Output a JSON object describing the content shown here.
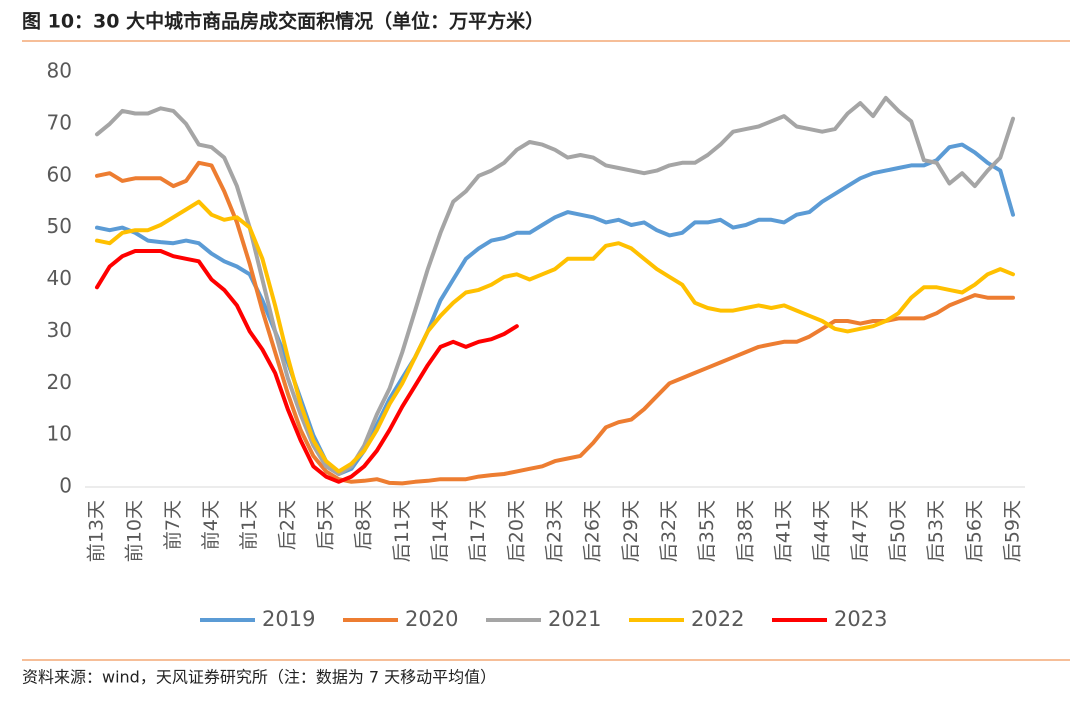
{
  "chart_data": {
    "type": "line",
    "title": "图 10：30 大中城市商品房成交面积情况（单位：万平方米）",
    "source": "资料来源：wind，天风证券研究所（注：数据为 7 天移动平均值）",
    "categories": [
      "前13天",
      null,
      null,
      "前10天",
      null,
      null,
      "前7天",
      null,
      null,
      "前4天",
      null,
      null,
      "前1天",
      null,
      null,
      "后2天",
      null,
      null,
      "后5天",
      null,
      null,
      "后8天",
      null,
      null,
      "后11天",
      null,
      null,
      "后14天",
      null,
      null,
      "后17天",
      null,
      null,
      "后20天",
      null,
      null,
      "后23天",
      null,
      null,
      "后26天",
      null,
      null,
      "后29天",
      null,
      null,
      "后32天",
      null,
      null,
      "后35天",
      null,
      null,
      "后38天",
      null,
      null,
      "后41天",
      null,
      null,
      "后44天",
      null,
      null,
      "后47天",
      null,
      null,
      "后50天",
      null,
      null,
      "后53天",
      null,
      null,
      "后56天",
      null,
      null,
      "后59天"
    ],
    "ylim": [
      0,
      80
    ],
    "yticks": [
      0,
      10,
      20,
      30,
      40,
      50,
      60,
      70,
      80
    ],
    "grid": false,
    "legend": "bottom",
    "series": [
      {
        "name": "2019",
        "color": "#5b9bd5",
        "values": [
          50,
          49.5,
          50,
          49,
          47.5,
          47.2,
          47,
          47.5,
          47,
          45,
          43.5,
          42.5,
          41,
          36,
          30,
          24,
          17,
          10,
          5,
          2.5,
          3.5,
          7,
          12,
          17,
          21,
          25,
          30,
          36,
          40,
          44,
          46,
          47.5,
          48,
          49,
          49,
          50.5,
          52,
          53,
          52.5,
          52,
          51,
          51.5,
          50.5,
          51,
          49.5,
          48.5,
          49,
          51,
          51,
          51.5,
          50,
          50.5,
          51.5,
          51.5,
          51,
          52.5,
          53,
          55,
          56.5,
          58,
          59.5,
          60.5,
          61,
          61.5,
          62,
          62,
          63,
          65.5,
          66,
          64.5,
          62.5,
          61,
          52.5
        ]
      },
      {
        "name": "2020",
        "color": "#ed7d31",
        "values": [
          60,
          60.5,
          59,
          59.5,
          59.5,
          59.5,
          58,
          59,
          62.5,
          62,
          57,
          51,
          43,
          34,
          26,
          18,
          11,
          6,
          3,
          1.5,
          1,
          1.2,
          1.5,
          0.8,
          0.7,
          1,
          1.2,
          1.5,
          1.5,
          1.5,
          2,
          2.3,
          2.5,
          3,
          3.5,
          4,
          5,
          5.5,
          6,
          8.5,
          11.5,
          12.5,
          13,
          15,
          17.5,
          20,
          21,
          22,
          23,
          24,
          25,
          26,
          27,
          27.5,
          28,
          28,
          29,
          30.5,
          32,
          32,
          31.5,
          32,
          32,
          32.5,
          32.5,
          32.5,
          33.5,
          35,
          36,
          37,
          36.5,
          36.5,
          36.5
        ]
      },
      {
        "name": "2021",
        "color": "#a5a5a5",
        "values": [
          68,
          70,
          72.5,
          72,
          72,
          73,
          72.5,
          70,
          66,
          65.5,
          63.5,
          58,
          50,
          40,
          30,
          21,
          14,
          8,
          4,
          2.5,
          4,
          8,
          14,
          19,
          26,
          34,
          42,
          49,
          55,
          57,
          60,
          61,
          62.5,
          65,
          66.5,
          66,
          65,
          63.5,
          64,
          63.5,
          62,
          61.5,
          61,
          60.5,
          61,
          62,
          62.5,
          62.5,
          64,
          66,
          68.5,
          69,
          69.5,
          70.5,
          71.5,
          69.5,
          69,
          68.5,
          69,
          72,
          74,
          71.5,
          75,
          72.5,
          70.5,
          63,
          62.5,
          58.5,
          60.5,
          58,
          61,
          63.5,
          71
        ]
      },
      {
        "name": "2022",
        "color": "#ffc000",
        "values": [
          47.5,
          47,
          49,
          49.5,
          49.5,
          50.5,
          52,
          53.5,
          55,
          52.5,
          51.5,
          52,
          50,
          44,
          35,
          25,
          16,
          9,
          5,
          3,
          4.5,
          7,
          11,
          16,
          20,
          25,
          30,
          33,
          35.5,
          37.5,
          38,
          39,
          40.5,
          41,
          40,
          41,
          42,
          44,
          44,
          44,
          46.5,
          47,
          46,
          44,
          42,
          40.5,
          39,
          35.5,
          34.5,
          34,
          34,
          34.5,
          35,
          34.5,
          35,
          34,
          33,
          32,
          30.5,
          30,
          30.5,
          31,
          32,
          33.5,
          36.5,
          38.5,
          38.5,
          38,
          37.5,
          39,
          41,
          42,
          41
        ]
      },
      {
        "name": "2023",
        "color": "#ff0000",
        "values": [
          38.5,
          42.5,
          44.5,
          45.5,
          45.5,
          45.5,
          44.5,
          44,
          43.5,
          40,
          38,
          35,
          30,
          26.5,
          22,
          15,
          9,
          4,
          2,
          1,
          2,
          4,
          7,
          11,
          15.5,
          19.5,
          23.5,
          27,
          28,
          27,
          28,
          28.5,
          29.5,
          31,
          null,
          null,
          null,
          null,
          null,
          null,
          null,
          null,
          null,
          null,
          null,
          null,
          null,
          null,
          null,
          null,
          null,
          null,
          null,
          null,
          null,
          null,
          null,
          null,
          null,
          null,
          null,
          null,
          null,
          null,
          null,
          null,
          null,
          null,
          null,
          null,
          null,
          null,
          null
        ]
      }
    ]
  }
}
